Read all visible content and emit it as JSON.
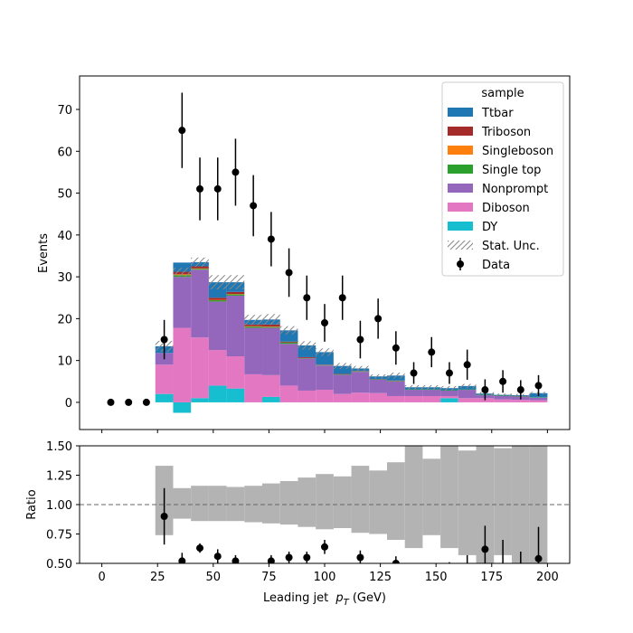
{
  "chart_data": [
    {
      "type": "stacked-histogram",
      "ylabel": "Events",
      "xlim": [
        -10,
        210
      ],
      "ylim": [
        -6.5,
        78
      ],
      "yticks": [
        0,
        10,
        20,
        30,
        40,
        50,
        60,
        70
      ],
      "bin_edges": [
        0,
        8,
        16,
        24,
        32,
        40,
        48,
        56,
        64,
        72,
        80,
        88,
        96,
        104,
        112,
        120,
        128,
        136,
        144,
        152,
        160,
        168,
        176,
        184,
        192,
        200
      ],
      "series": [
        {
          "name": "DY",
          "color": "#17becf",
          "values": [
            0,
            0,
            0,
            2,
            -2.5,
            1,
            4,
            3.3,
            0,
            1.3,
            0,
            0,
            0,
            0,
            0,
            0,
            0,
            0,
            0,
            1,
            0,
            0,
            0,
            0,
            0
          ]
        },
        {
          "name": "Diboson",
          "color": "#e377c2",
          "values": [
            0,
            0,
            0,
            7,
            17.8,
            14.5,
            8.5,
            7.7,
            6.7,
            5.2,
            4,
            2.8,
            3,
            2,
            2.3,
            2.2,
            1.5,
            1.5,
            1.5,
            0.5,
            1,
            1,
            0.7,
            0.6,
            0.5
          ]
        },
        {
          "name": "Nonprompt",
          "color": "#9467bd",
          "values": [
            0,
            0,
            0,
            2.8,
            12.2,
            16.2,
            11.6,
            14.5,
            11.1,
            11.3,
            10,
            7.7,
            5.8,
            4.6,
            5,
            3.3,
            3.5,
            1.5,
            1.5,
            1.3,
            2,
            0.7,
            0.8,
            0.8,
            0.6
          ]
        },
        {
          "name": "Single top",
          "color": "#2ca02c",
          "values": [
            0,
            0,
            0,
            0,
            0.4,
            0.2,
            0.3,
            0.3,
            0.3,
            0.2,
            0.3,
            0.1,
            0.1,
            0.1,
            0.1,
            0.1,
            0.1,
            0.1,
            0.1,
            0.1,
            0.1,
            0.1,
            0.1,
            0.1,
            0.1
          ]
        },
        {
          "name": "Singleboson",
          "color": "#ff7f0e",
          "values": [
            0,
            0,
            0,
            0,
            0.2,
            0.1,
            0.1,
            0.1,
            0.1,
            0.1,
            0,
            0,
            0,
            0,
            0,
            0,
            0,
            0,
            0,
            0,
            0,
            0,
            0,
            0,
            0
          ]
        },
        {
          "name": "Triboson",
          "color": "#a52a2a",
          "values": [
            0,
            0,
            0,
            0,
            0.6,
            0.5,
            0.5,
            0.5,
            0.4,
            0.5,
            0.2,
            0.2,
            0.1,
            0.1,
            0.1,
            0,
            0.1,
            0,
            0,
            0,
            0,
            0,
            0,
            0,
            0
          ]
        },
        {
          "name": "Ttbar",
          "color": "#1f77b4",
          "values": [
            0,
            0,
            0,
            1.6,
            2.2,
            1,
            3.7,
            2.3,
            1.1,
            1.2,
            2.7,
            2.8,
            3,
            1.9,
            0.6,
            0.6,
            1.2,
            0.5,
            0.5,
            0.5,
            0.8,
            0.3,
            0.2,
            0.2,
            1
          ]
        }
      ],
      "stat_unc": [
        0,
        0,
        0,
        1.3,
        1.3,
        1.1,
        1.7,
        1.7,
        1.2,
        1.3,
        1,
        1,
        0.9,
        0.7,
        0.6,
        0.5,
        0.7,
        0.5,
        0.5,
        0.5,
        0.5,
        0.4,
        0.3,
        0.3,
        0.3
      ],
      "stat_unc_label": "Stat. Unc.",
      "data": {
        "name": "Data",
        "x": [
          4,
          12,
          20,
          28,
          36,
          44,
          52,
          60,
          68,
          76,
          84,
          92,
          100,
          108,
          116,
          124,
          132,
          140,
          148,
          156,
          164,
          172,
          180,
          188,
          196
        ],
        "y": [
          0,
          0,
          0,
          15,
          65,
          51,
          51,
          55,
          47,
          39,
          31,
          25,
          19,
          25,
          15,
          20,
          13,
          7,
          12,
          7,
          9,
          3,
          5,
          3,
          4
        ],
        "yerr": [
          0,
          0,
          0,
          4.7,
          9,
          7.5,
          7.5,
          8,
          7.3,
          6.5,
          5.8,
          5.3,
          4.5,
          5.3,
          4.5,
          4.8,
          4,
          2.6,
          3.6,
          2.6,
          3.6,
          2.5,
          2.7,
          2.3,
          2.5
        ]
      },
      "legend": {
        "title": "sample",
        "placement": "upper right"
      }
    },
    {
      "type": "ratio",
      "xlabel": "Leading jet  p_T (GeV)",
      "xlabel_main": "Leading jet ",
      "xlabel_var": "p",
      "xlabel_sub": "T",
      "xlabel_unit": " (GeV)",
      "ylabel": "Ratio",
      "xlim": [
        -10,
        210
      ],
      "ylim": [
        0.5,
        1.5
      ],
      "xticks": [
        0,
        25,
        50,
        75,
        100,
        125,
        150,
        175,
        200
      ],
      "yticks": [
        "0.50",
        "0.75",
        "1.00",
        "1.25",
        "1.50"
      ],
      "reference_line": 1.0,
      "unc_band_lo": [
        null,
        null,
        null,
        0.74,
        0.88,
        0.86,
        0.86,
        0.86,
        0.85,
        0.84,
        0.83,
        0.81,
        0.79,
        0.8,
        0.76,
        0.75,
        0.7,
        0.63,
        0.74,
        0.63,
        0.57,
        0.4,
        0.57,
        0.45,
        0.4
      ],
      "unc_band_hi": [
        null,
        null,
        null,
        1.33,
        1.14,
        1.16,
        1.16,
        1.15,
        1.16,
        1.18,
        1.2,
        1.23,
        1.26,
        1.24,
        1.33,
        1.29,
        1.36,
        1.55,
        1.39,
        1.5,
        1.46,
        1.55,
        1.48,
        1.55,
        1.55
      ],
      "ratio_y": [
        null,
        null,
        null,
        0.9,
        0.52,
        0.63,
        0.56,
        0.52,
        0.44,
        0.52,
        0.55,
        0.55,
        0.64,
        0.44,
        0.55,
        0.45,
        0.5,
        0.4,
        0.42,
        0.38,
        0.45,
        0.62,
        0.45,
        0.4,
        0.54
      ],
      "ratio_err": [
        null,
        null,
        null,
        0.24,
        0.07,
        0.04,
        0.06,
        0.05,
        0.05,
        0.05,
        0.05,
        0.05,
        0.06,
        0.04,
        0.06,
        0.05,
        0.06,
        0.1,
        0.08,
        0.13,
        0.12,
        0.2,
        0.25,
        0.2,
        0.27
      ]
    }
  ]
}
